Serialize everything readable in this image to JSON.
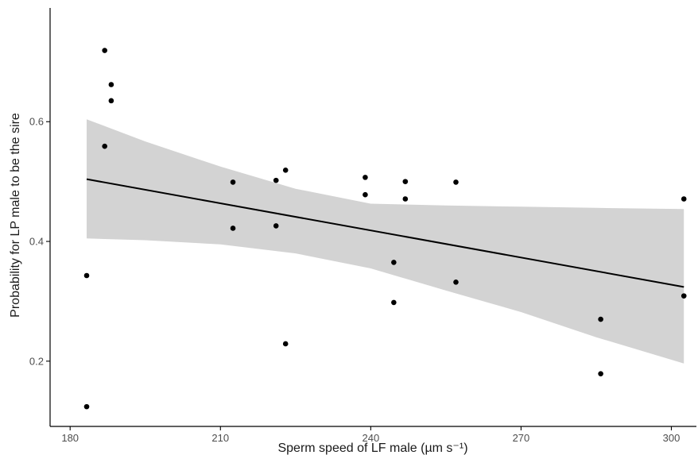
{
  "chart_data": {
    "type": "scatter",
    "title": "",
    "xlabel": "Sperm speed of LF male (µm s⁻¹)",
    "ylabel": "Probability for LP male to be the sire",
    "xlim": [
      176,
      305
    ],
    "ylim": [
      0.091,
      0.79
    ],
    "x_ticks": [
      180,
      210,
      240,
      270,
      300
    ],
    "y_ticks": [
      0.2,
      0.4,
      0.6
    ],
    "x_tick_labels": [
      "180",
      "210",
      "240",
      "270",
      "300"
    ],
    "y_tick_labels": [
      "0.2",
      "0.4",
      "0.6"
    ],
    "grid": false,
    "colors": {
      "points": "#000000",
      "fit_line": "#000000",
      "confidence_band": "#d3d3d3",
      "axis": "#000000",
      "tick_label": "#4d4d4d"
    },
    "series": [
      {
        "points": [
          {
            "x": 183.3,
            "y": 0.124
          },
          {
            "x": 183.3,
            "y": 0.343
          },
          {
            "x": 186.9,
            "y": 0.719
          },
          {
            "x": 186.9,
            "y": 0.559
          },
          {
            "x": 188.2,
            "y": 0.662
          },
          {
            "x": 188.2,
            "y": 0.635
          },
          {
            "x": 212.5,
            "y": 0.499
          },
          {
            "x": 212.5,
            "y": 0.422
          },
          {
            "x": 221.1,
            "y": 0.502
          },
          {
            "x": 221.1,
            "y": 0.426
          },
          {
            "x": 223.0,
            "y": 0.519
          },
          {
            "x": 223.0,
            "y": 0.229
          },
          {
            "x": 238.9,
            "y": 0.507
          },
          {
            "x": 238.9,
            "y": 0.478
          },
          {
            "x": 244.6,
            "y": 0.365
          },
          {
            "x": 244.6,
            "y": 0.298
          },
          {
            "x": 246.9,
            "y": 0.5
          },
          {
            "x": 246.9,
            "y": 0.471
          },
          {
            "x": 257.0,
            "y": 0.499
          },
          {
            "x": 257.0,
            "y": 0.332
          },
          {
            "x": 285.9,
            "y": 0.27
          },
          {
            "x": 285.9,
            "y": 0.179
          },
          {
            "x": 302.5,
            "y": 0.471
          },
          {
            "x": 302.5,
            "y": 0.309
          }
        ]
      }
    ],
    "fit": {
      "type": "linear",
      "x": [
        183.3,
        302.5
      ],
      "y": [
        0.504,
        0.324
      ]
    },
    "confidence_band": [
      {
        "x": 183.3,
        "lower": 0.405,
        "upper": 0.604
      },
      {
        "x": 195,
        "lower": 0.402,
        "upper": 0.567
      },
      {
        "x": 210,
        "lower": 0.395,
        "upper": 0.525
      },
      {
        "x": 225,
        "lower": 0.38,
        "upper": 0.488
      },
      {
        "x": 240,
        "lower": 0.355,
        "upper": 0.463
      },
      {
        "x": 255,
        "lower": 0.318,
        "upper": 0.46
      },
      {
        "x": 270,
        "lower": 0.282,
        "upper": 0.458
      },
      {
        "x": 285,
        "lower": 0.24,
        "upper": 0.456
      },
      {
        "x": 302.5,
        "lower": 0.196,
        "upper": 0.454
      }
    ]
  }
}
